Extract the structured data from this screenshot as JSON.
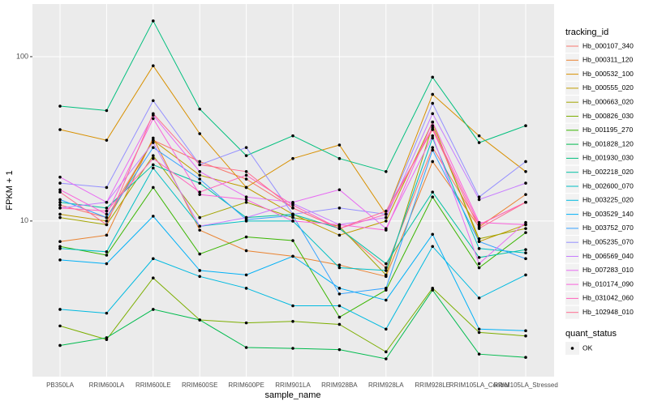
{
  "chart_data": {
    "type": "line",
    "x_label": "sample_name",
    "y_label": "FPKM + 1",
    "categories": [
      "PB350LA",
      "RRIM600LA",
      "RRIM600LE",
      "RRIM600SE",
      "RRIM600PE",
      "RRIM901LA",
      "RRIM928BA",
      "RRIM928LA",
      "RRIM928LE",
      "RRIM105LA_Control",
      "RRIM105LA_Stressed"
    ],
    "log_y": true,
    "grid": true,
    "ylim": [
      1.13,
      209
    ],
    "yticks": [
      10,
      100
    ],
    "legend_title": "tracking_id",
    "series": [
      {
        "name": "Hb_000107_340",
        "color": "#F8766D",
        "values": [
          12.5,
          10.5,
          31,
          23,
          18,
          12,
          9,
          5.2,
          28,
          9.5,
          13
        ]
      },
      {
        "name": "Hb_000311_120",
        "color": "#EA8331",
        "values": [
          7.5,
          8.2,
          32,
          8.8,
          6.6,
          6.1,
          5.4,
          4.6,
          23,
          9.2,
          14.5
        ]
      },
      {
        "name": "Hb_000532_100",
        "color": "#D89000",
        "values": [
          36,
          31,
          88,
          34,
          16,
          24,
          29,
          11,
          59,
          33,
          20
        ]
      },
      {
        "name": "Hb_000555_020",
        "color": "#C09B00",
        "values": [
          11,
          10,
          31,
          19,
          16,
          11,
          8.2,
          10,
          40,
          7.5,
          9.5
        ]
      },
      {
        "name": "Hb_000663_020",
        "color": "#A3A500",
        "values": [
          10.5,
          9.5,
          25,
          10.5,
          13,
          10.5,
          9.3,
          4.7,
          38,
          7.8,
          9
        ]
      },
      {
        "name": "Hb_000826_030",
        "color": "#7CAE00",
        "values": [
          2.3,
          1.9,
          4.5,
          2.5,
          2.4,
          2.45,
          2.35,
          1.6,
          3.9,
          2.1,
          2.0
        ]
      },
      {
        "name": "Hb_001195_270",
        "color": "#39B600",
        "values": [
          7,
          6.2,
          16,
          6.3,
          8,
          7.6,
          2.6,
          3.8,
          14,
          5.2,
          8.5
        ]
      },
      {
        "name": "Hb_001828_120",
        "color": "#00BB4E",
        "values": [
          1.75,
          1.95,
          2.9,
          2.5,
          1.7,
          1.68,
          1.65,
          1.45,
          3.8,
          1.55,
          1.48
        ]
      },
      {
        "name": "Hb_001930_030",
        "color": "#00BF7D",
        "values": [
          50,
          47,
          165,
          48,
          25,
          33,
          24,
          20,
          75,
          30,
          38
        ]
      },
      {
        "name": "Hb_002218_020",
        "color": "#00C1A3",
        "values": [
          13,
          12,
          22,
          17,
          10.5,
          11,
          9,
          5.5,
          15,
          6,
          6.7
        ]
      },
      {
        "name": "Hb_002600_070",
        "color": "#00BFC4",
        "values": [
          6.8,
          6.5,
          21,
          9.3,
          10,
          10,
          5.2,
          5,
          32,
          6.8,
          6.4
        ]
      },
      {
        "name": "Hb_003225_020",
        "color": "#00BAE0",
        "values": [
          2.9,
          2.75,
          5.9,
          4.6,
          3.9,
          3.05,
          3.05,
          2.2,
          7,
          3.4,
          4.7
        ]
      },
      {
        "name": "Hb_003529_140",
        "color": "#00B0F6",
        "values": [
          5.8,
          5.5,
          10.7,
          5,
          4.7,
          6.1,
          3.9,
          3.3,
          8.3,
          2.2,
          2.15
        ]
      },
      {
        "name": "Hb_003752_070",
        "color": "#35A2FF",
        "values": [
          13.5,
          10.5,
          28,
          18,
          10.2,
          10.8,
          3.6,
          3.9,
          27,
          7.5,
          5.9
        ]
      },
      {
        "name": "Hb_005235_070",
        "color": "#9590FF",
        "values": [
          17,
          16,
          54,
          22,
          28,
          11,
          12,
          11,
          52,
          14,
          23
        ]
      },
      {
        "name": "Hb_006569_040",
        "color": "#C77CFF",
        "values": [
          12,
          13,
          30,
          9.3,
          10.5,
          12.8,
          9.5,
          10.5,
          45,
          13.5,
          17
        ]
      },
      {
        "name": "Hb_007283_010",
        "color": "#E76BF3",
        "values": [
          18.5,
          13,
          44,
          20,
          14,
          13,
          15.5,
          9,
          33,
          5.5,
          9.8
        ]
      },
      {
        "name": "Hb_010174_090",
        "color": "#FA62DB",
        "values": [
          15.5,
          11,
          42,
          14.5,
          13.5,
          10,
          9.5,
          8.8,
          40,
          9.8,
          9.5
        ]
      },
      {
        "name": "Hb_031042_060",
        "color": "#FF62BC",
        "values": [
          12,
          11.5,
          24,
          15,
          19,
          12.5,
          9,
          11,
          37,
          9.5,
          13
        ]
      },
      {
        "name": "Hb_102948_010",
        "color": "#FF6C91",
        "values": [
          15,
          9.5,
          45,
          22,
          20,
          12,
          9,
          11.5,
          36,
          9,
          13
        ]
      }
    ],
    "point_legend": {
      "title": "quant_status",
      "entries": [
        "OK"
      ]
    }
  }
}
